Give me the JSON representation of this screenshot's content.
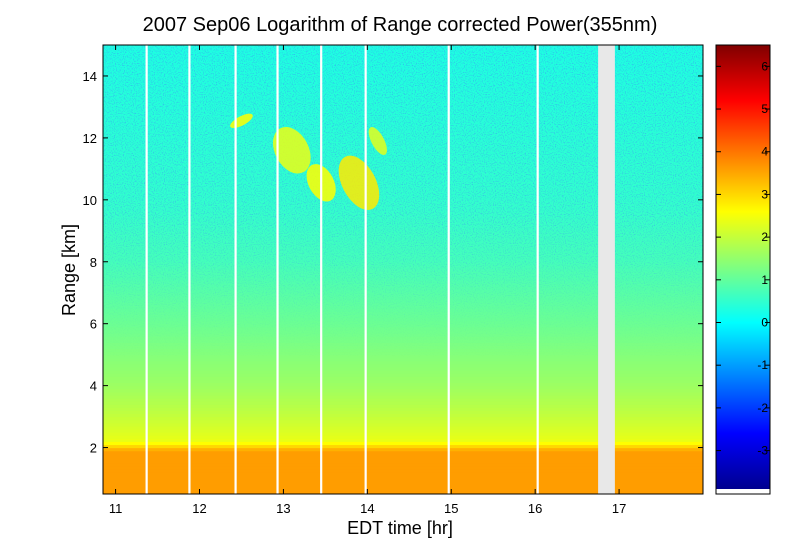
{
  "chart_data": {
    "type": "heatmap",
    "title": "2007 Sep06  Logarithm of Range corrected Power(355nm)",
    "xlabel": "EDT time [hr]",
    "ylabel": "Range [km]",
    "xlim": [
      10.85,
      18.0
    ],
    "ylim": [
      0.5,
      15.0
    ],
    "x_ticks": [
      "11",
      "12",
      "13",
      "14",
      "15",
      "16",
      "17"
    ],
    "y_ticks": [
      "2",
      "4",
      "6",
      "8",
      "10",
      "12",
      "14"
    ],
    "colorbar": {
      "colormap": "jet",
      "range": [
        -3.9,
        6.5
      ],
      "ticks": [
        "6",
        "5",
        "4",
        "3",
        "2",
        "1",
        "0",
        "-1",
        "-2",
        "-3"
      ]
    },
    "vertical_profile": [
      {
        "range_km": 0.5,
        "value": 3.6
      },
      {
        "range_km": 1.9,
        "value": 3.6
      },
      {
        "range_km": 2.2,
        "value": 2.4
      },
      {
        "range_km": 3.0,
        "value": 2.0
      },
      {
        "range_km": 4.0,
        "value": 1.6
      },
      {
        "range_km": 6.0,
        "value": 1.1
      },
      {
        "range_km": 8.0,
        "value": 0.7
      },
      {
        "range_km": 10.0,
        "value": 0.5
      },
      {
        "range_km": 15.0,
        "value": 0.3
      }
    ],
    "data_gap": {
      "x_start": 16.75,
      "x_end": 16.95
    },
    "gap_lines_x": [
      11.37,
      11.88,
      12.43,
      12.93,
      13.45,
      13.98,
      14.97,
      16.03
    ],
    "cloud_layers": [
      {
        "x": [
          12.35,
          12.65
        ],
        "y": [
          12.4,
          12.7
        ],
        "value": 2.6
      },
      {
        "x": [
          12.9,
          13.3
        ],
        "y": [
          10.8,
          12.4
        ],
        "value": 2.4
      },
      {
        "x": [
          13.3,
          13.6
        ],
        "y": [
          9.9,
          11.2
        ],
        "value": 2.6
      },
      {
        "x": [
          13.7,
          14.1
        ],
        "y": [
          9.6,
          11.5
        ],
        "value": 2.8
      },
      {
        "x": [
          14.05,
          14.2
        ],
        "y": [
          11.4,
          12.4
        ],
        "value": 2.3
      }
    ]
  }
}
